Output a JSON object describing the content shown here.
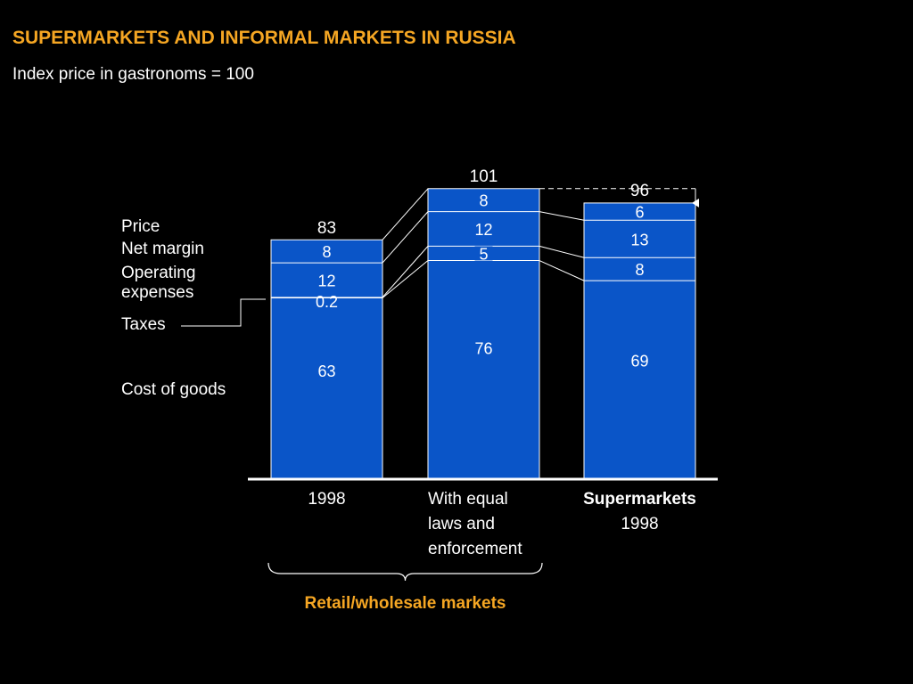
{
  "title": "SUPERMARKETS AND INFORMAL MARKETS IN RUSSIA",
  "subtitle": "Index price in gastronoms = 100",
  "colors": {
    "bar": "#0A55C8",
    "title": "#F5A623",
    "background": "#000000",
    "text": "#FFFFFF"
  },
  "chart_data": {
    "type": "bar",
    "stacked": true,
    "components": [
      "Cost of goods",
      "Taxes",
      "Operating expenses",
      "Net margin"
    ],
    "row_labels": {
      "price": "Price",
      "net_margin": "Net margin",
      "operating_1": "Operating",
      "operating_2": "expenses",
      "taxes": "Taxes",
      "cost": "Cost of goods"
    },
    "categories": [
      {
        "lines": [
          "1998"
        ],
        "bold_first": false
      },
      {
        "lines": [
          "With equal",
          "laws and",
          "enforcement"
        ],
        "bold_first": false
      },
      {
        "lines": [
          "Supermarkets",
          "1998"
        ],
        "bold_first": true
      }
    ],
    "bars": [
      {
        "segments": [
          {
            "value": 63,
            "label": "63"
          },
          {
            "value": 0.2,
            "label": "0.2"
          },
          {
            "value": 12,
            "label": "12"
          },
          {
            "value": 8,
            "label": "8"
          }
        ],
        "total": 83,
        "total_label": "83"
      },
      {
        "segments": [
          {
            "value": 76,
            "label": "76"
          },
          {
            "value": 5,
            "label": "5"
          },
          {
            "value": 12,
            "label": "12"
          },
          {
            "value": 8,
            "label": "8"
          }
        ],
        "total": 101,
        "total_label": "101"
      },
      {
        "segments": [
          {
            "value": 69,
            "label": "69"
          },
          {
            "value": 8,
            "label": "8"
          },
          {
            "value": 13,
            "label": "13"
          },
          {
            "value": 6,
            "label": "6"
          }
        ],
        "total": 96,
        "total_label": "96"
      }
    ],
    "bracket_label": "Retail/wholesale markets",
    "bracket_spans_categories": [
      0,
      1
    ],
    "comparison_arrow": {
      "from_bar": 1,
      "to_bar": 2
    }
  }
}
